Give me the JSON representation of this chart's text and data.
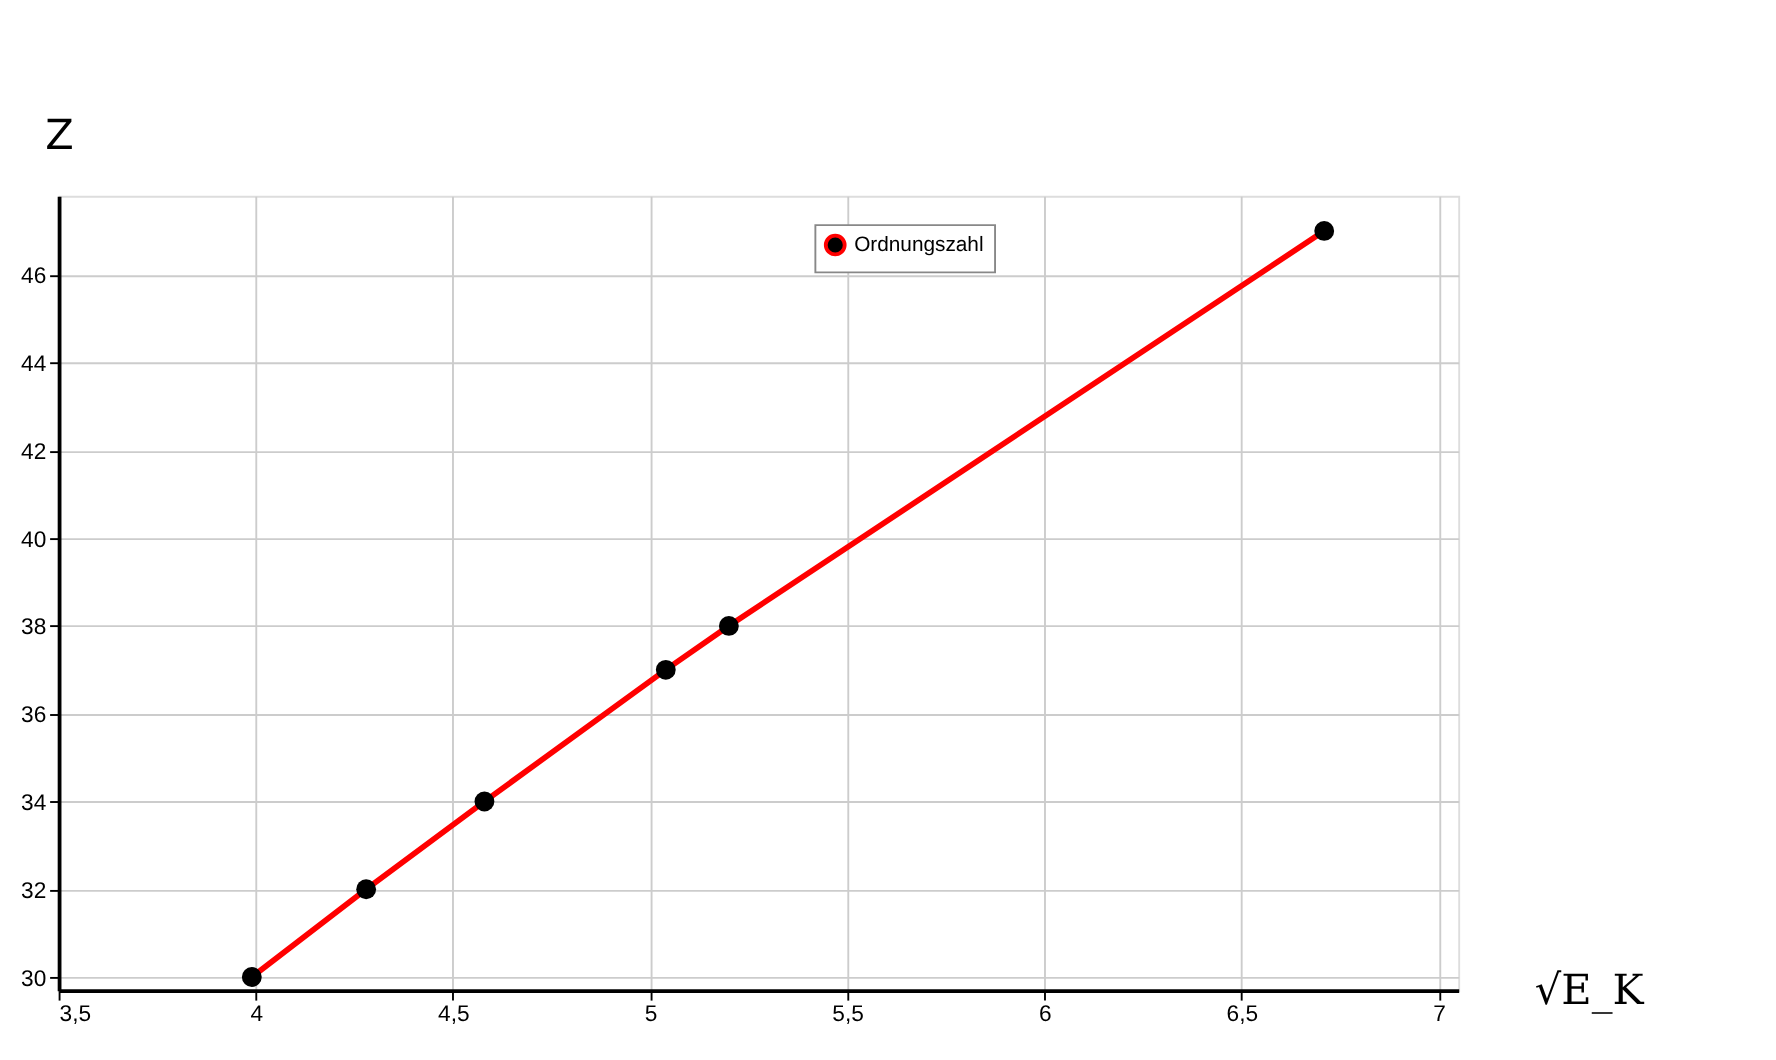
{
  "chart_data": {
    "type": "line",
    "xlabel": "√E_K",
    "ylabel": "Z",
    "x": [
      3.99,
      4.28,
      4.58,
      5.04,
      5.2,
      6.71
    ],
    "series": [
      {
        "name": "Ordnungszahl",
        "color": "#ff0000",
        "values": [
          30,
          32,
          34,
          37,
          38,
          47
        ]
      }
    ],
    "xlim": [
      3.5,
      7.05
    ],
    "ylim": [
      29.7,
      47.8
    ],
    "xticks": [
      {
        "value": 3.5,
        "label": "3,5"
      },
      4,
      {
        "value": 4.5,
        "label": "4,5"
      },
      5,
      {
        "value": 5.5,
        "label": "5,5"
      },
      6,
      {
        "value": 6.5,
        "label": "6,5"
      },
      7
    ],
    "yticks": [
      30,
      32,
      34,
      36,
      38,
      40,
      42,
      44,
      46
    ],
    "grid": true,
    "legend": "top",
    "marker": "circle",
    "line_style": "solid"
  }
}
